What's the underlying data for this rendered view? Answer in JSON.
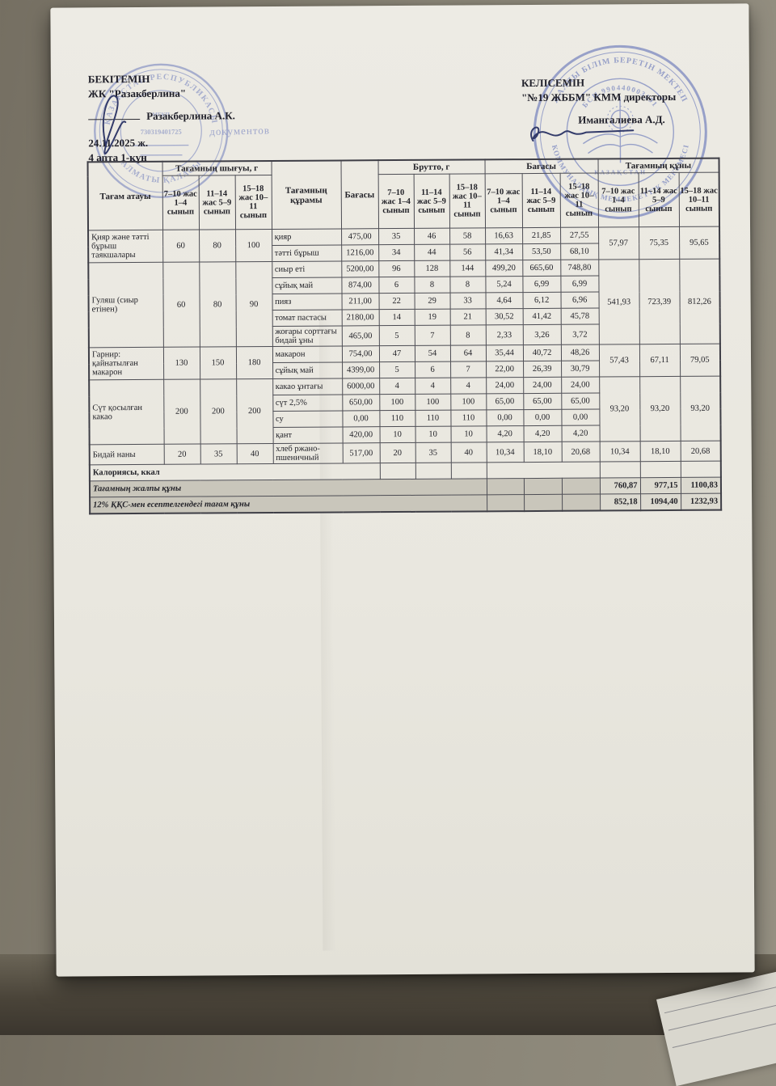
{
  "document": {
    "approval": {
      "approve_title": "БЕКІТЕМІН",
      "approve_org": "ЖК \"Разакберлина\"",
      "approve_name": "Разакберлина А.К.",
      "date": "24.11.2025 ж.",
      "week_day": "4 апта 1-күн",
      "agree_title": "КЕЛІСЕМІН",
      "agree_org": "\"№19 ЖББМ\" КММ директоры",
      "agree_name": "Имангалиева А.Д."
    },
    "stamps": {
      "left_ring_top": "ҚАЗАҚСТАН РЕСПУБЛИКАСЫ",
      "left_ring_bottom": "АЛМАТЫ ҚАЛАСЫ",
      "left_center_number": "730319401725",
      "left_overlay_text": "документов",
      "right_ring_top": "ЖАЛПЫ БІЛІМ БЕРЕТІН МЕКТЕП",
      "right_ring_bottom": "КОММУНАЛДЫҚ МЕМЛЕКЕТТІК МЕКЕМЕСІ",
      "right_inner_arc": "БСН 990440003191",
      "right_center_caption": "ҚАЗАҚСТАН"
    }
  },
  "table": {
    "headers": {
      "dish": "Тағам атауы",
      "output_group": "Тағамның шығуы, г",
      "composition": "Тағамның құрамы",
      "price": "Бағасы",
      "brutto_group": "Брутто, г",
      "price_group": "Бағасы",
      "cost_group": "Тағамның құны",
      "age_columns": [
        "7–10 жас 1–4 сынып",
        "11–14 жас 5–9 сынып",
        "15–18 жас 10–11 сынып"
      ],
      "cost_age_columns": [
        "7–10 жас 1–4 сынып",
        "11–14 жас 5–9 сынып",
        "15–18 жас 10–11 сынып"
      ]
    },
    "dishes": [
      {
        "name": "Қияр және тәтті бұрыш таякшалары",
        "output": [
          "60",
          "80",
          "100"
        ],
        "cost": [
          "57,97",
          "75,35",
          "95,65"
        ],
        "ingredients": [
          {
            "name": "қияр",
            "price": "475,00",
            "brutto": [
              "35",
              "46",
              "58"
            ],
            "prices": [
              "16,63",
              "21,85",
              "27,55"
            ]
          },
          {
            "name": "тәтті бұрыш",
            "price": "1216,00",
            "brutto": [
              "34",
              "44",
              "56"
            ],
            "prices": [
              "41,34",
              "53,50",
              "68,10"
            ]
          }
        ]
      },
      {
        "name": "Гуляш (сиыр етінен)",
        "output": [
          "60",
          "80",
          "90"
        ],
        "cost": [
          "541,93",
          "723,39",
          "812,26"
        ],
        "ingredients": [
          {
            "name": "сиыр еті",
            "price": "5200,00",
            "brutto": [
              "96",
              "128",
              "144"
            ],
            "prices": [
              "499,20",
              "665,60",
              "748,80"
            ]
          },
          {
            "name": "сұйық май",
            "price": "874,00",
            "brutto": [
              "6",
              "8",
              "8"
            ],
            "prices": [
              "5,24",
              "6,99",
              "6,99"
            ]
          },
          {
            "name": "пияз",
            "price": "211,00",
            "brutto": [
              "22",
              "29",
              "33"
            ],
            "prices": [
              "4,64",
              "6,12",
              "6,96"
            ]
          },
          {
            "name": "томат пастасы",
            "price": "2180,00",
            "brutto": [
              "14",
              "19",
              "21"
            ],
            "prices": [
              "30,52",
              "41,42",
              "45,78"
            ]
          },
          {
            "name": "жоғары сорттағы бидай ұны",
            "price": "465,00",
            "brutto": [
              "5",
              "7",
              "8"
            ],
            "prices": [
              "2,33",
              "3,26",
              "3,72"
            ]
          }
        ]
      },
      {
        "name": "Гарнир: қайнатылған макарон",
        "output": [
          "130",
          "150",
          "180"
        ],
        "cost": [
          "57,43",
          "67,11",
          "79,05"
        ],
        "ingredients": [
          {
            "name": "макарон",
            "price": "754,00",
            "brutto": [
              "47",
              "54",
              "64"
            ],
            "prices": [
              "35,44",
              "40,72",
              "48,26"
            ]
          },
          {
            "name": "сұйық май",
            "price": "4399,00",
            "brutto": [
              "5",
              "6",
              "7"
            ],
            "prices": [
              "22,00",
              "26,39",
              "30,79"
            ]
          }
        ]
      },
      {
        "name": "Сүт қосылған какао",
        "output": [
          "200",
          "200",
          "200"
        ],
        "cost": [
          "93,20",
          "93,20",
          "93,20"
        ],
        "ingredients": [
          {
            "name": "какао ұнтағы",
            "price": "6000,00",
            "brutto": [
              "4",
              "4",
              "4"
            ],
            "prices": [
              "24,00",
              "24,00",
              "24,00"
            ]
          },
          {
            "name": "сүт 2,5%",
            "price": "650,00",
            "brutto": [
              "100",
              "100",
              "100"
            ],
            "prices": [
              "65,00",
              "65,00",
              "65,00"
            ]
          },
          {
            "name": "су",
            "price": "0,00",
            "brutto": [
              "110",
              "110",
              "110"
            ],
            "prices": [
              "0,00",
              "0,00",
              "0,00"
            ]
          },
          {
            "name": "қант",
            "price": "420,00",
            "brutto": [
              "10",
              "10",
              "10"
            ],
            "prices": [
              "4,20",
              "4,20",
              "4,20"
            ]
          }
        ]
      },
      {
        "name": "Бидай наны",
        "output": [
          "20",
          "35",
          "40"
        ],
        "cost": [
          "10,34",
          "18,10",
          "20,68"
        ],
        "ingredients": [
          {
            "name": "хлеб ржано-пшеничный",
            "price": "517,00",
            "brutto": [
              "20",
              "35",
              "40"
            ],
            "prices": [
              "10,34",
              "18,10",
              "20,68"
            ]
          }
        ]
      }
    ],
    "footer": {
      "calories_label": "Калориясы, ккал",
      "total_label": "Тағамның жалпы құны",
      "total_values": [
        "760,87",
        "977,15",
        "1100,83"
      ],
      "vat_label": "12% ҚҚС-мен есептелгендегі тағам құны",
      "vat_values": [
        "852,18",
        "1094,40",
        "1232,93"
      ]
    }
  }
}
